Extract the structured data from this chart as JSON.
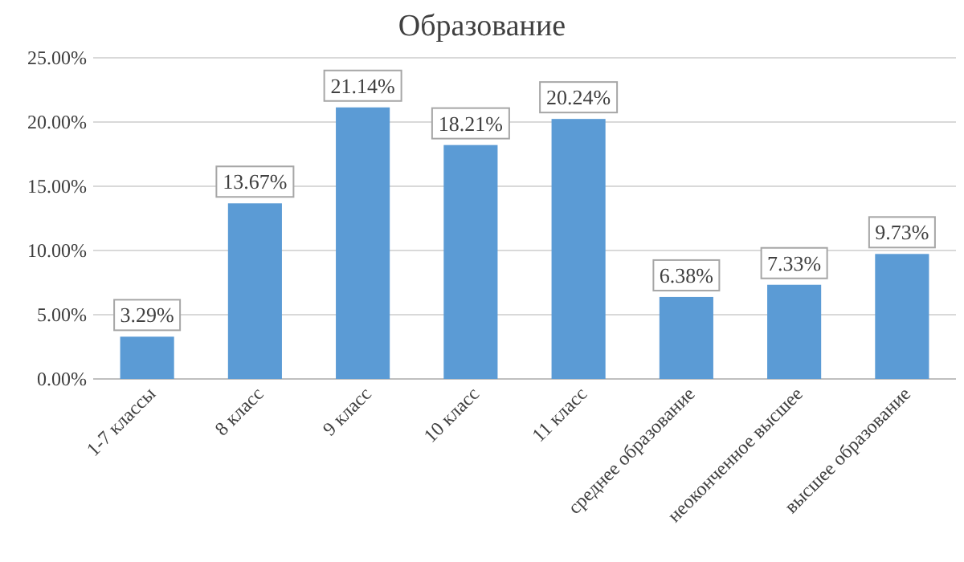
{
  "chart_data": {
    "type": "bar",
    "title": "Образование",
    "categories": [
      "1-7 классы",
      "8 класс",
      "9 класс",
      "10 класс",
      "11 класс",
      "среднее образование",
      "неоконченное высшее",
      "высшее образование"
    ],
    "values": [
      3.29,
      13.67,
      21.14,
      18.21,
      20.24,
      6.38,
      7.33,
      9.73
    ],
    "value_labels": [
      "3.29%",
      "13.67%",
      "21.14%",
      "18.21%",
      "20.24%",
      "6.38%",
      "7.33%",
      "9.73%"
    ],
    "color": "#5b9bd5",
    "ylim": [
      0,
      25
    ],
    "yticks": [
      {
        "value": 0,
        "label": "0.00%"
      },
      {
        "value": 5,
        "label": "5.00%"
      },
      {
        "value": 10,
        "label": "10.00%"
      },
      {
        "value": 15,
        "label": "15.00%"
      },
      {
        "value": 20,
        "label": "20.00%"
      },
      {
        "value": 25,
        "label": "25.00%"
      }
    ],
    "grid": "y"
  }
}
